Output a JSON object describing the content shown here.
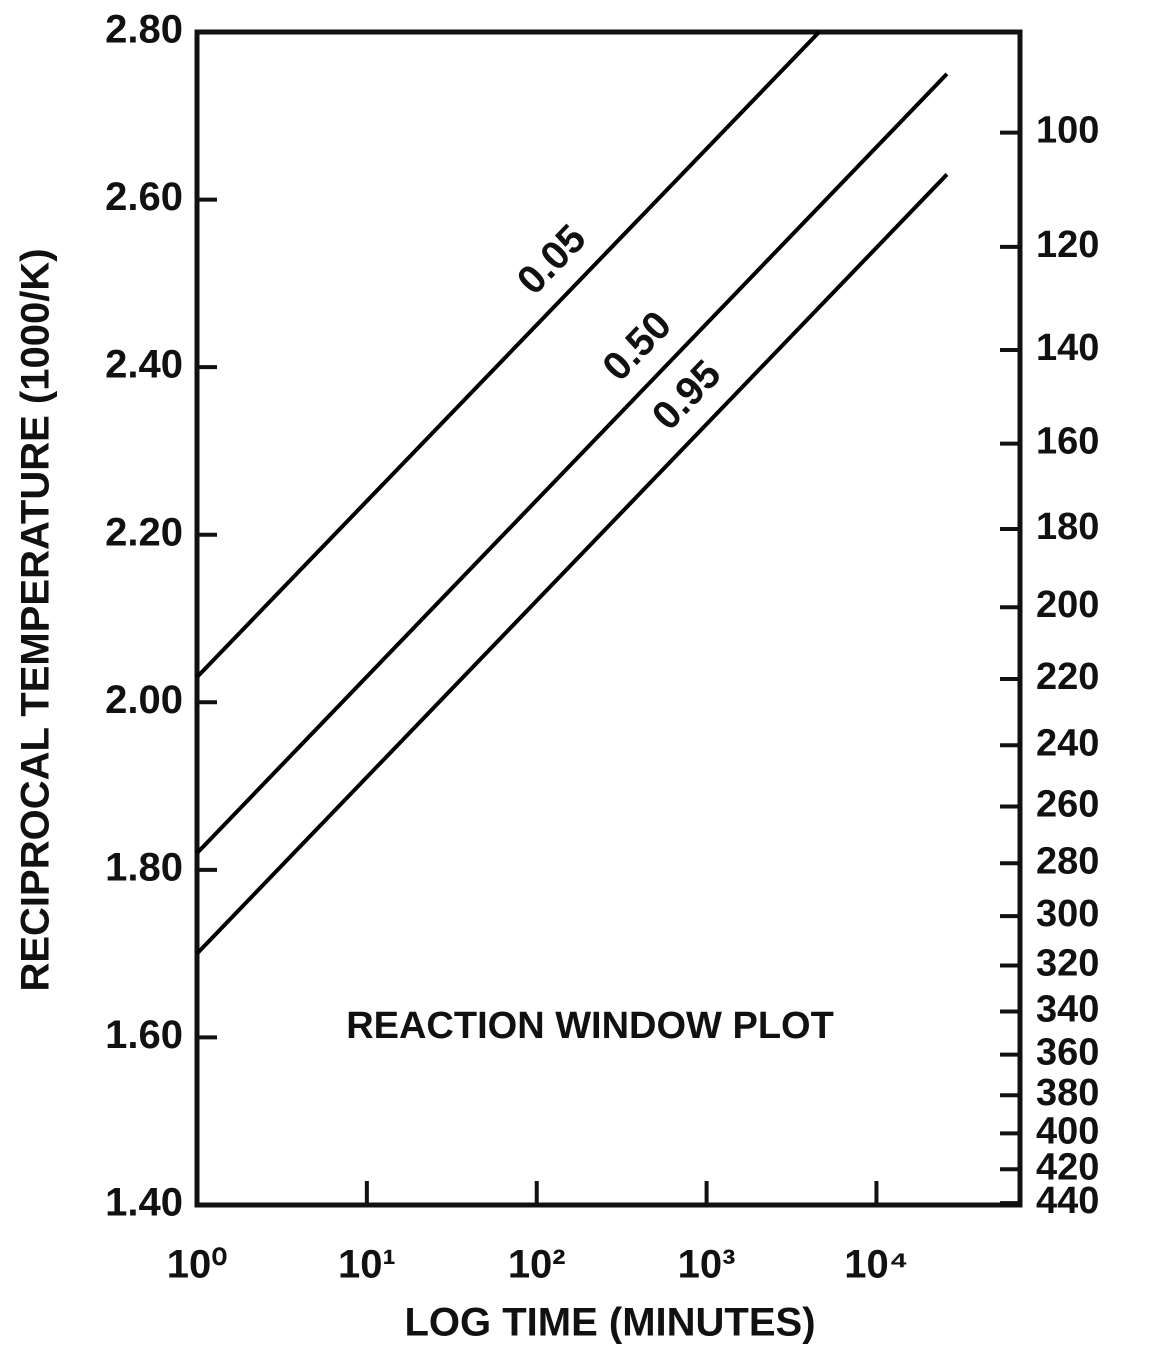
{
  "chart_data": {
    "type": "line",
    "annotation": "REACTION WINDOW PLOT",
    "xlabel": "LOG TIME (MINUTES)",
    "ylabel": "RECIPROCAL TEMPERATURE (1000/K)",
    "xscale": "log",
    "xlim": [
      1,
      70000
    ],
    "xticks": [
      {
        "value": 1,
        "label": "10⁰"
      },
      {
        "value": 10,
        "label": "10¹"
      },
      {
        "value": 100,
        "label": "10²"
      },
      {
        "value": 1000,
        "label": "10³"
      },
      {
        "value": 10000,
        "label": "10⁴"
      }
    ],
    "ylim": [
      1.4,
      2.8
    ],
    "yticks": [
      {
        "value": 1.4,
        "label": "1.40"
      },
      {
        "value": 1.6,
        "label": "1.60"
      },
      {
        "value": 1.8,
        "label": "1.80"
      },
      {
        "value": 2.0,
        "label": "2.00"
      },
      {
        "value": 2.2,
        "label": "2.20"
      },
      {
        "value": 2.4,
        "label": "2.40"
      },
      {
        "value": 2.6,
        "label": "2.60"
      },
      {
        "value": 2.8,
        "label": "2.80"
      }
    ],
    "y2scale": "celsius-reciprocal",
    "y2lim": [
      84,
      441
    ],
    "y2ticks": [
      100,
      120,
      140,
      160,
      180,
      200,
      220,
      240,
      260,
      280,
      300,
      320,
      340,
      360,
      380,
      400,
      420,
      440
    ],
    "series": [
      {
        "name": "0.05",
        "color": "#000000",
        "x": [
          1,
          4600
        ],
        "values": [
          2.03,
          2.8
        ]
      },
      {
        "name": "0.50",
        "color": "#000000",
        "x": [
          1,
          26000
        ],
        "values": [
          1.82,
          2.75
        ]
      },
      {
        "name": "0.95",
        "color": "#000000",
        "x": [
          1,
          26000
        ],
        "values": [
          1.7,
          2.63
        ]
      }
    ]
  }
}
